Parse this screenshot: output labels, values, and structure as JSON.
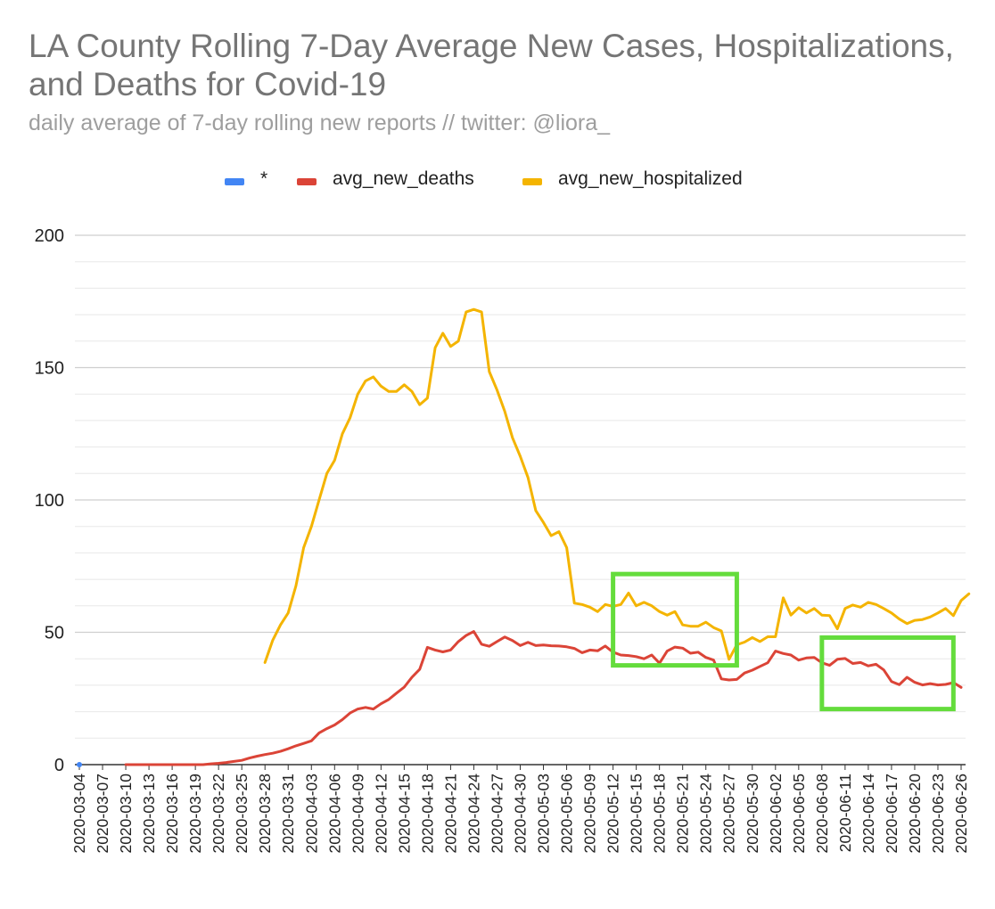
{
  "chart_data": {
    "type": "line",
    "title": "LA County Rolling 7-Day Average New Cases, Hospitalizations, and Deaths for Covid-19",
    "subtitle": "daily average of 7-day rolling new reports // twitter: @liora_",
    "xlabel": "",
    "ylabel": "",
    "ylim": [
      0,
      200
    ],
    "y_ticks": [
      0,
      50,
      100,
      150,
      200
    ],
    "grid": true,
    "legend_position": "top",
    "x_tick_labels": [
      "2020-03-04",
      "2020-03-07",
      "2020-03-10",
      "2020-03-13",
      "2020-03-16",
      "2020-03-19",
      "2020-03-22",
      "2020-03-25",
      "2020-03-28",
      "2020-03-31",
      "2020-04-03",
      "2020-04-06",
      "2020-04-09",
      "2020-04-12",
      "2020-04-15",
      "2020-04-18",
      "2020-04-21",
      "2020-04-24",
      "2020-04-27",
      "2020-04-30",
      "2020-05-03",
      "2020-05-06",
      "2020-05-09",
      "2020-05-12",
      "2020-05-15",
      "2020-05-18",
      "2020-05-21",
      "2020-05-24",
      "2020-05-27",
      "2020-05-30",
      "2020-06-02",
      "2020-06-05",
      "2020-06-08",
      "2020-06-11",
      "2020-06-14",
      "2020-06-17",
      "2020-06-20",
      "2020-06-23",
      "2020-06-26"
    ],
    "start_date": "2020-03-04",
    "series": [
      {
        "name": "*",
        "color": "#4285f4",
        "start_index": 0,
        "values": [
          0
        ]
      },
      {
        "name": "avg_new_deaths",
        "color": "#db4437",
        "start_index": 6,
        "values": [
          0,
          0,
          0,
          0,
          0,
          0,
          0,
          0,
          0,
          0,
          0,
          0.3,
          0.5,
          0.8,
          1.2,
          1.6,
          2.5,
          3.2,
          3.8,
          4.3,
          5,
          6,
          7.1,
          8,
          9,
          12,
          13.6,
          15,
          17,
          19.5,
          21,
          21.6,
          21,
          23,
          24.6,
          27,
          29.3,
          33,
          36,
          44.3,
          43.3,
          42.6,
          43.3,
          46.5,
          48.8,
          50.3,
          45.5,
          44.7,
          46.5,
          48.2,
          46.9,
          45,
          46.2,
          45,
          45.2,
          44.9,
          44.8,
          44.5,
          43.9,
          42.3,
          43.3,
          43,
          44.8,
          42.5,
          41.4,
          41.2,
          40.8,
          40,
          41.4,
          38.3,
          42.9,
          44.4,
          44,
          42.1,
          42.5,
          40.5,
          39.5,
          32.4,
          32,
          32.2,
          34.6,
          35.7,
          37.1,
          38.5,
          42.9,
          42,
          41.4,
          39.5,
          40.3,
          40.5,
          38.5,
          37.5,
          39.8,
          40.1,
          38.2,
          38.6,
          37.3,
          37.9,
          35.8,
          31.4,
          30.2,
          33,
          31.1,
          30.1,
          30.6,
          30.1,
          30.3,
          31,
          29.2
        ]
      },
      {
        "name": "avg_new_hospitalized",
        "color": "#f4b400",
        "start_index": 24,
        "values": [
          38.6,
          47,
          52.8,
          57.3,
          67.5,
          82,
          90,
          100,
          110,
          115,
          125,
          131,
          140,
          145,
          146.5,
          143,
          141,
          141,
          143.5,
          141,
          136,
          138.5,
          157.5,
          163,
          158,
          160,
          171,
          172,
          171,
          148.5,
          141.5,
          133.5,
          123.5,
          116.5,
          108.5,
          96,
          91.5,
          86.5,
          88,
          82,
          61,
          60.5,
          59.5,
          57.8,
          60.5,
          59.8,
          60.5,
          64.8,
          60,
          61.3,
          60,
          57.8,
          56.5,
          57.8,
          52.8,
          52.3,
          52.3,
          53.8,
          51.8,
          50.5,
          39.8,
          45.3,
          46.3,
          48,
          46.5,
          48.3,
          48.3,
          63,
          56.5,
          59.3,
          57.3,
          59,
          56.5,
          56.3,
          51.3,
          59,
          60.3,
          59.5,
          61.3,
          60.5,
          59,
          57.3,
          55,
          53.3,
          54.5,
          54.8,
          55.8,
          57.3,
          59,
          56.3,
          62,
          64.5
        ]
      }
    ],
    "annotations": [
      {
        "type": "highlight-box",
        "color": "#64dc3c",
        "x_start": "2020-05-12",
        "x_end": "2020-05-28",
        "y_low": 37.5,
        "y_high": 72
      },
      {
        "type": "highlight-box",
        "color": "#64dc3c",
        "x_start": "2020-06-08",
        "x_end": "2020-06-25",
        "y_low": 21,
        "y_high": 48
      }
    ]
  }
}
